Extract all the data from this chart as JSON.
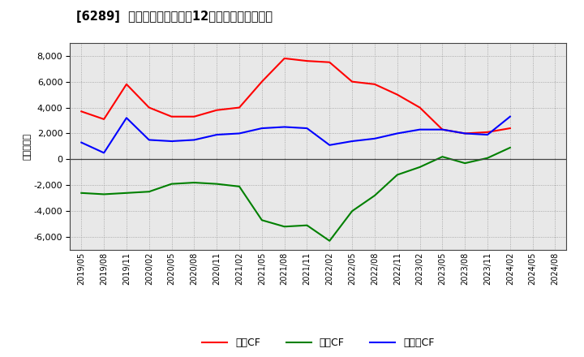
{
  "title": "[6289]  キャッシュフローの12か月移動合計の推移",
  "ylabel": "（百万円）",
  "background_color": "#ffffff",
  "plot_background_color": "#e8e8e8",
  "x_labels": [
    "2019/05",
    "2019/08",
    "2019/11",
    "2020/02",
    "2020/05",
    "2020/08",
    "2020/11",
    "2021/02",
    "2021/05",
    "2021/08",
    "2021/11",
    "2022/02",
    "2022/05",
    "2022/08",
    "2022/11",
    "2023/02",
    "2023/05",
    "2023/08",
    "2023/11",
    "2024/02",
    "2024/05",
    "2024/08"
  ],
  "operating_cf": [
    3700,
    3100,
    5800,
    4000,
    3300,
    3300,
    3800,
    4000,
    6000,
    7800,
    7600,
    7500,
    6000,
    5800,
    5000,
    4000,
    2300,
    2000,
    2100,
    2400,
    null,
    null
  ],
  "investing_cf": [
    -2600,
    -2700,
    -2600,
    -2500,
    -1900,
    -1800,
    -1900,
    -2100,
    -4700,
    -5200,
    -5100,
    -6300,
    -4000,
    -2800,
    -1200,
    -600,
    200,
    -300,
    100,
    900,
    null,
    null
  ],
  "free_cf": [
    1300,
    500,
    3200,
    1500,
    1400,
    1500,
    1900,
    2000,
    2400,
    2500,
    2400,
    1100,
    1400,
    1600,
    2000,
    2300,
    2300,
    2000,
    1900,
    3300,
    null,
    null
  ],
  "operating_color": "#ff0000",
  "investing_color": "#008000",
  "free_color": "#0000ff",
  "ylim": [
    -7000,
    9000
  ],
  "yticks": [
    -6000,
    -4000,
    -2000,
    0,
    2000,
    4000,
    6000,
    8000
  ],
  "legend_labels": [
    "営業CF",
    "投資CF",
    "フリーCF"
  ]
}
